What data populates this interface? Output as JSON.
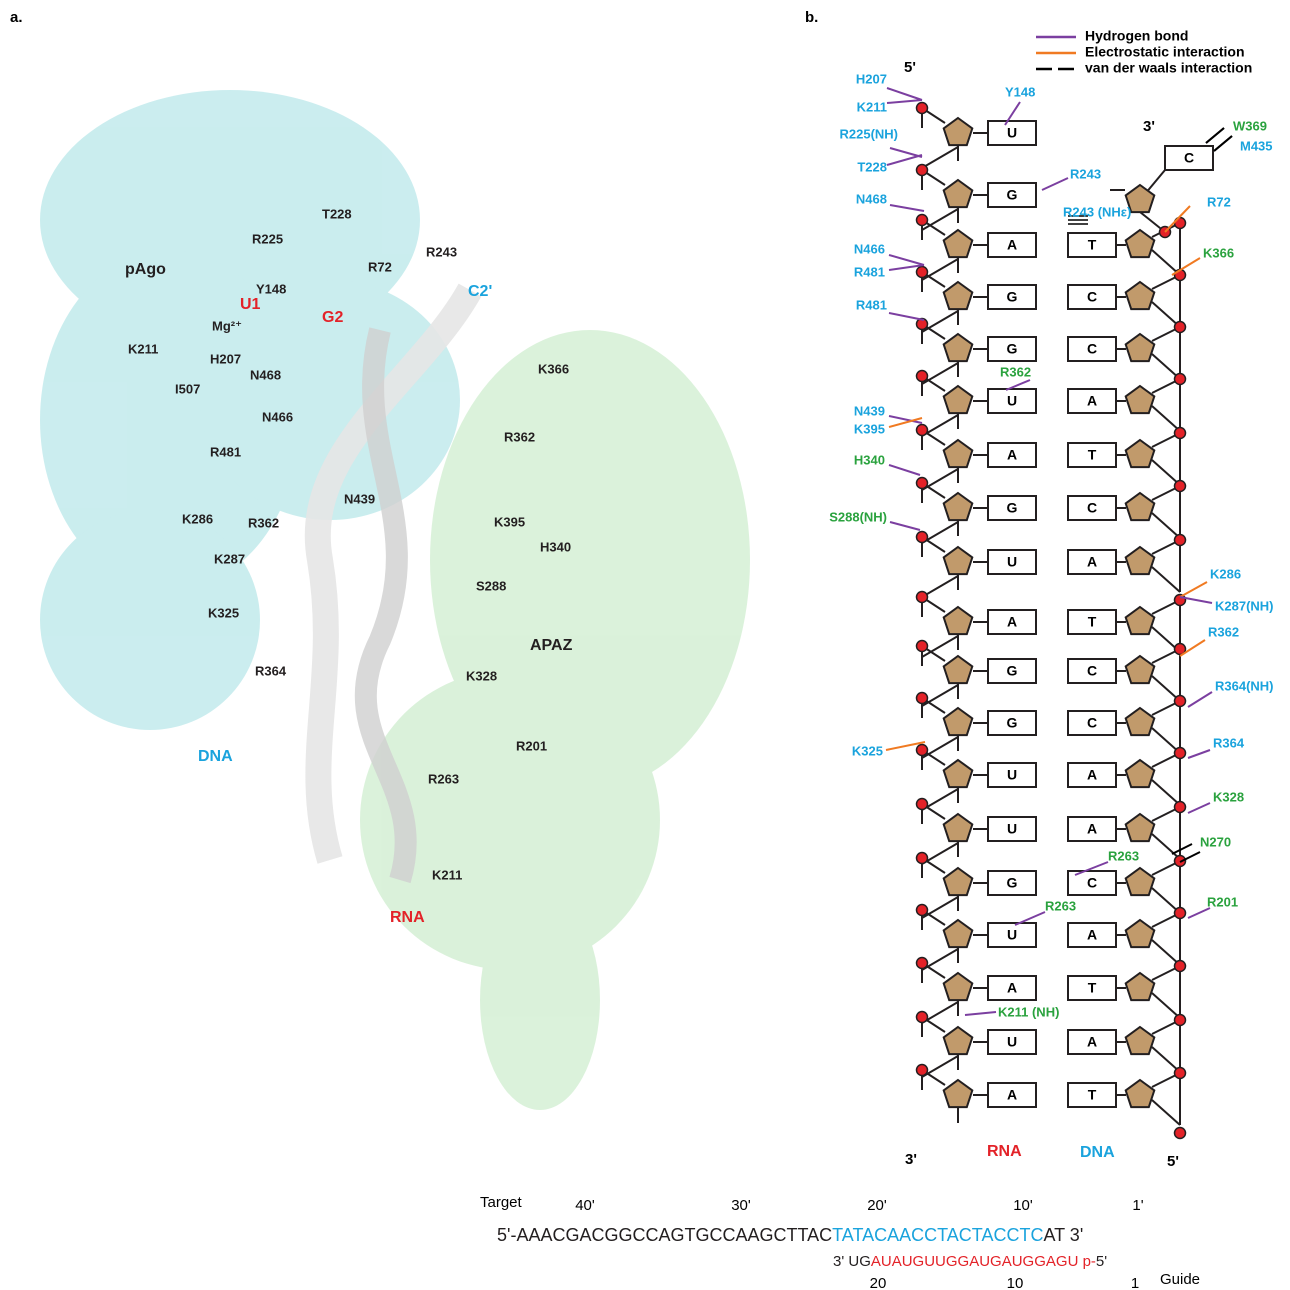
{
  "panel_a": {
    "label": "a.",
    "labels": [
      {
        "text": "pAgo",
        "color": "#231f20"
      },
      {
        "text": "U1",
        "color": "#e32228"
      },
      {
        "text": "G2",
        "color": "#e32228"
      },
      {
        "text": "Mg²⁺",
        "color": "#231f20"
      },
      {
        "text": "C2'",
        "color": "#1aa3dd"
      },
      {
        "text": "K211",
        "color": "#231f20"
      },
      {
        "text": "H207",
        "color": "#231f20"
      },
      {
        "text": "N468",
        "color": "#231f20"
      },
      {
        "text": "I507",
        "color": "#231f20"
      },
      {
        "text": "N466",
        "color": "#231f20"
      },
      {
        "text": "R481",
        "color": "#231f20"
      },
      {
        "text": "T228",
        "color": "#231f20"
      },
      {
        "text": "R225",
        "color": "#231f20"
      },
      {
        "text": "Y148",
        "color": "#231f20"
      },
      {
        "text": "R72",
        "color": "#231f20"
      },
      {
        "text": "R243",
        "color": "#231f20"
      },
      {
        "text": "K366",
        "color": "#231f20"
      },
      {
        "text": "R362",
        "color": "#231f20"
      },
      {
        "text": "N439",
        "color": "#231f20"
      },
      {
        "text": "K395",
        "color": "#231f20"
      },
      {
        "text": "H340",
        "color": "#231f20"
      },
      {
        "text": "K286",
        "color": "#231f20"
      },
      {
        "text": "R362",
        "color": "#231f20"
      },
      {
        "text": "K287",
        "color": "#231f20"
      },
      {
        "text": "S288",
        "color": "#231f20"
      },
      {
        "text": "K325",
        "color": "#231f20"
      },
      {
        "text": "APAZ",
        "color": "#231f20"
      },
      {
        "text": "R364",
        "color": "#231f20"
      },
      {
        "text": "K328",
        "color": "#231f20"
      },
      {
        "text": "DNA",
        "color": "#1aa3dd"
      },
      {
        "text": "R201",
        "color": "#231f20"
      },
      {
        "text": "R263",
        "color": "#231f20"
      },
      {
        "text": "K211",
        "color": "#231f20"
      },
      {
        "text": "RNA",
        "color": "#e32228"
      }
    ]
  },
  "panel_b": {
    "label": "b.",
    "legend": [
      {
        "text": "Hydrogen bond",
        "color": "#7b3fa0",
        "dashed": false
      },
      {
        "text": "Electrostatic interaction",
        "color": "#f07a22",
        "dashed": false
      },
      {
        "text": "van der waals interaction",
        "color": "#000000",
        "dashed": true
      }
    ],
    "ends": {
      "rna_top": "5'",
      "dna_top": "3'",
      "rna_bottom": "3'",
      "dna_bottom": "5'",
      "rna_name": "RNA",
      "dna_name": "DNA"
    },
    "rna_bases": [
      "U",
      "G",
      "A",
      "G",
      "G",
      "U",
      "A",
      "G",
      "U",
      "A",
      "G",
      "G",
      "U",
      "U",
      "G",
      "U",
      "A",
      "U",
      "A"
    ],
    "dna_bases": [
      "C",
      "T",
      "C",
      "C",
      "A",
      "T",
      "C",
      "A",
      "T",
      "C",
      "C",
      "A",
      "A",
      "C",
      "A",
      "T",
      "A",
      "T"
    ],
    "interactions": [
      {
        "label": "H207",
        "label_color": "#1aa3dd",
        "line_color": "#7b3fa0"
      },
      {
        "label": "K211",
        "label_color": "#1aa3dd",
        "line_color": "#7b3fa0"
      },
      {
        "label": "Y148",
        "label_color": "#1aa3dd",
        "line_color": "#7b3fa0"
      },
      {
        "label": "R225(NH)",
        "label_color": "#1aa3dd",
        "line_color": "#7b3fa0"
      },
      {
        "label": "T228",
        "label_color": "#1aa3dd",
        "line_color": "#7b3fa0"
      },
      {
        "label": "R243",
        "label_color": "#1aa3dd",
        "line_color": "#7b3fa0"
      },
      {
        "label": "N468",
        "label_color": "#1aa3dd",
        "line_color": "#7b3fa0"
      },
      {
        "label": "R243 (NHε)",
        "label_color": "#1aa3dd",
        "line_color": "#000000"
      },
      {
        "label": "R72",
        "label_color": "#1aa3dd",
        "line_color": "#f07a22"
      },
      {
        "label": "N466",
        "label_color": "#1aa3dd",
        "line_color": "#7b3fa0"
      },
      {
        "label": "R481",
        "label_color": "#1aa3dd",
        "line_color": "#7b3fa0"
      },
      {
        "label": "K366",
        "label_color": "#2aa23e",
        "line_color": "#f07a22"
      },
      {
        "label": "R481",
        "label_color": "#1aa3dd",
        "line_color": "#7b3fa0"
      },
      {
        "label": "R362",
        "label_color": "#2aa23e",
        "line_color": "#7b3fa0"
      },
      {
        "label": "N439",
        "label_color": "#1aa3dd",
        "line_color": "#7b3fa0"
      },
      {
        "label": "K395",
        "label_color": "#1aa3dd",
        "line_color": "#f07a22"
      },
      {
        "label": "H340",
        "label_color": "#2aa23e",
        "line_color": "#7b3fa0"
      },
      {
        "label": "S288(NH)",
        "label_color": "#2aa23e",
        "line_color": "#7b3fa0"
      },
      {
        "label": "K286",
        "label_color": "#1aa3dd",
        "line_color": "#f07a22"
      },
      {
        "label": "K287(NH)",
        "label_color": "#1aa3dd",
        "line_color": "#7b3fa0"
      },
      {
        "label": "R362",
        "label_color": "#1aa3dd",
        "line_color": "#f07a22"
      },
      {
        "label": "R364(NH)",
        "label_color": "#1aa3dd",
        "line_color": "#7b3fa0"
      },
      {
        "label": "K325",
        "label_color": "#1aa3dd",
        "line_color": "#f07a22"
      },
      {
        "label": "R364",
        "label_color": "#1aa3dd",
        "line_color": "#7b3fa0"
      },
      {
        "label": "K328",
        "label_color": "#2aa23e",
        "line_color": "#7b3fa0"
      },
      {
        "label": "N270",
        "label_color": "#2aa23e",
        "line_color": "#000000"
      },
      {
        "label": "R263",
        "label_color": "#2aa23e",
        "line_color": "#7b3fa0"
      },
      {
        "label": "R263",
        "label_color": "#2aa23e",
        "line_color": "#7b3fa0"
      },
      {
        "label": "R201",
        "label_color": "#2aa23e",
        "line_color": "#7b3fa0"
      },
      {
        "label": "K211 (NH)",
        "label_color": "#2aa23e",
        "line_color": "#7b3fa0"
      },
      {
        "label": "W369",
        "label_color": "#2aa23e",
        "line_color": "#000000"
      },
      {
        "label": "M435",
        "label_color": "#1aa3dd",
        "line_color": "#000000"
      }
    ]
  },
  "sequence": {
    "target_label": "Target",
    "target_positions": [
      "40'",
      "30'",
      "20'",
      "10'",
      "1'"
    ],
    "target": {
      "start": "5'-AAACGACGGCCAGTGCCAAGCTTAC",
      "paired": "TATACAACCTACTACCTC",
      "end": "AT 3'",
      "paired_color": "#1aa3dd"
    },
    "guide": {
      "start": "3'  UG",
      "paired": "AUAUGUUGGAUGAUGGAGU",
      "phosphate": " p-",
      "end": "5'",
      "paired_color": "#e32228"
    },
    "guide_positions": [
      "20",
      "10",
      "1"
    ],
    "guide_label": "Guide"
  }
}
